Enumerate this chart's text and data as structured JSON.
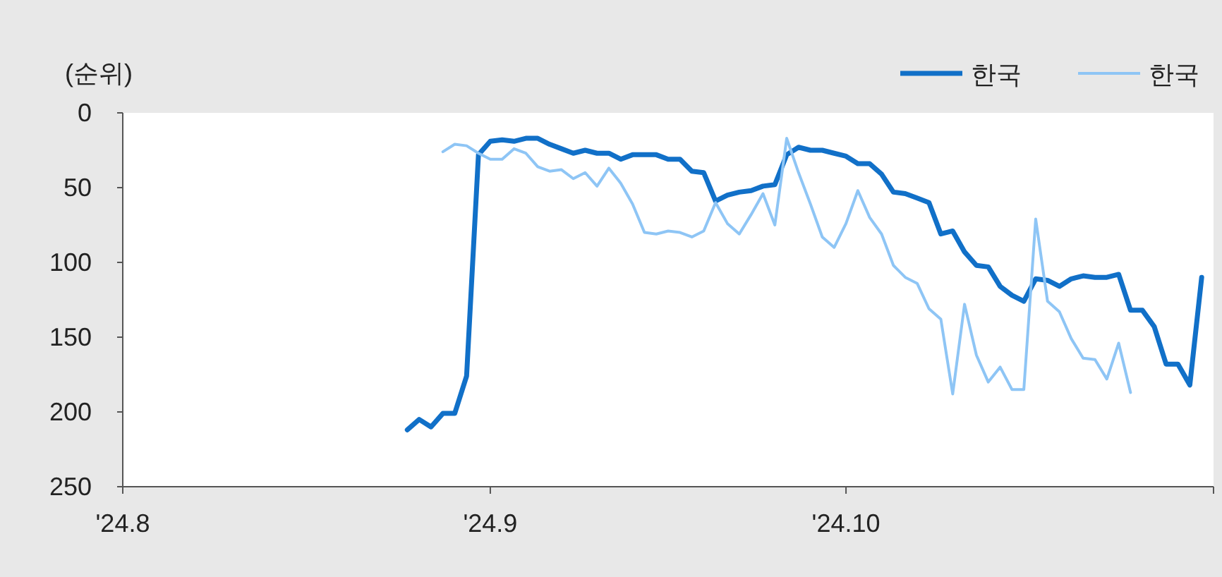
{
  "chart_data": {
    "type": "line",
    "ylabel": "(순위)",
    "legend": "top right",
    "x": [
      "2024-08-25",
      "2024-08-26",
      "2024-08-27",
      "2024-08-28",
      "2024-08-29",
      "2024-08-30",
      "2024-08-31",
      "2024-09-01",
      "2024-09-02",
      "2024-09-03",
      "2024-09-04",
      "2024-09-05",
      "2024-09-06",
      "2024-09-07",
      "2024-09-08",
      "2024-09-09",
      "2024-09-10",
      "2024-09-11",
      "2024-09-12",
      "2024-09-13",
      "2024-09-14",
      "2024-09-15",
      "2024-09-16",
      "2024-09-17",
      "2024-09-18",
      "2024-09-19",
      "2024-09-20",
      "2024-09-21",
      "2024-09-22",
      "2024-09-23",
      "2024-09-24",
      "2024-09-25",
      "2024-09-26",
      "2024-09-27",
      "2024-09-28",
      "2024-09-29",
      "2024-09-30",
      "2024-10-01",
      "2024-10-02",
      "2024-10-03",
      "2024-10-04",
      "2024-10-05",
      "2024-10-06",
      "2024-10-07",
      "2024-10-08",
      "2024-10-09",
      "2024-10-10",
      "2024-10-11",
      "2024-10-12",
      "2024-10-13",
      "2024-10-14",
      "2024-10-15",
      "2024-10-16",
      "2024-10-17",
      "2024-10-18",
      "2024-10-19",
      "2024-10-20",
      "2024-10-21",
      "2024-10-22",
      "2024-10-23",
      "2024-10-24",
      "2024-10-25",
      "2024-10-26",
      "2024-10-27",
      "2024-10-28",
      "2024-10-29",
      "2024-10-30",
      "2024-10-31"
    ],
    "series": [
      {
        "name": "한국",
        "color": "#1170c8",
        "values": [
          212,
          205,
          210,
          201,
          201,
          176,
          28,
          19,
          18,
          19,
          17,
          17,
          21,
          24,
          27,
          25,
          27,
          27,
          31,
          28,
          28,
          28,
          31,
          31,
          39,
          40,
          59,
          55,
          53,
          52,
          49,
          48,
          28,
          23,
          25,
          25,
          27,
          29,
          34,
          34,
          41,
          53,
          54,
          57,
          60,
          81,
          79,
          93,
          102,
          103,
          116,
          122,
          126,
          111,
          112,
          116,
          111,
          109,
          110,
          110,
          108,
          132,
          132,
          143,
          168,
          168,
          182,
          110
        ]
      },
      {
        "name": "한국",
        "color": "#8ec5f5",
        "values": [
          null,
          null,
          null,
          26,
          21,
          22,
          27,
          31,
          31,
          24,
          27,
          36,
          39,
          38,
          44,
          40,
          49,
          37,
          47,
          61,
          80,
          81,
          79,
          80,
          83,
          79,
          60,
          74,
          81,
          68,
          54,
          75,
          17,
          40,
          61,
          83,
          90,
          74,
          52,
          70,
          81,
          102,
          110,
          114,
          131,
          138,
          188,
          128,
          162,
          180,
          170,
          185,
          185,
          71,
          126,
          133,
          151,
          164,
          165,
          178,
          154,
          187,
          null,
          null,
          null,
          null,
          null,
          null
        ]
      }
    ],
    "xlim": [
      "2024-08-01",
      "2024-11-01"
    ],
    "xticks": [
      {
        "value": "2024-08-01",
        "label": "'24.8"
      },
      {
        "value": "2024-09-01",
        "label": "'24.9"
      },
      {
        "value": "2024-10-01",
        "label": "'24.10"
      },
      {
        "value": "2024-11-01",
        "label": null
      }
    ],
    "ylim": [
      250,
      0
    ],
    "yticks": [
      0,
      50,
      100,
      150,
      200,
      250
    ]
  }
}
